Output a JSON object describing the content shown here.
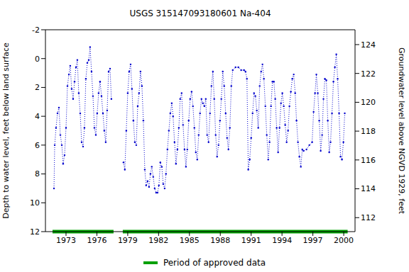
{
  "chart_data": {
    "type": "line",
    "title": "USGS 315147093180601 Na-404",
    "y_label": "Depth to water level, feet below land surface",
    "y2_label": "Groundwater level above NGVD 1929, feet",
    "color": "#0000cc",
    "marker": "circle",
    "line_style": "dotted",
    "xlim": [
      1971,
      2001.1
    ],
    "xticks": [
      1973,
      1976,
      1979,
      1982,
      1985,
      1988,
      1991,
      1994,
      1997,
      2000
    ],
    "ylim": [
      12,
      -2
    ],
    "yticks": [
      -2,
      0,
      2,
      4,
      6,
      8,
      10,
      12
    ],
    "y2lim": [
      111.03,
      125.03
    ],
    "y2ticks": [
      112,
      114,
      116,
      118,
      120,
      122,
      124
    ],
    "grid": false,
    "legend": "bottom",
    "x": [
      1971.83,
      1971.9,
      1972.03,
      1972.17,
      1972.31,
      1972.45,
      1972.59,
      1972.72,
      1972.86,
      1973.0,
      1973.14,
      1973.28,
      1973.41,
      1973.55,
      1973.69,
      1973.83,
      1973.97,
      1974.1,
      1974.24,
      1974.38,
      1974.52,
      1974.66,
      1974.79,
      1974.93,
      1975.07,
      1975.21,
      1975.34,
      1975.48,
      1975.62,
      1975.76,
      1975.9,
      1976.03,
      1976.17,
      1976.31,
      1976.45,
      1976.59,
      1976.72,
      1976.86,
      1977.0,
      1977.14,
      1977.28,
      1977.41,
      1978.0,
      1978.59,
      1978.72,
      1978.86,
      1979.0,
      1979.14,
      1979.28,
      1979.41,
      1979.55,
      1979.69,
      1979.83,
      1979.97,
      1980.1,
      1980.24,
      1980.38,
      1980.52,
      1980.66,
      1980.79,
      1980.93,
      1981.07,
      1981.21,
      1981.34,
      1981.48,
      1981.62,
      1981.76,
      1981.9,
      1982.03,
      1982.17,
      1982.31,
      1982.45,
      1982.59,
      1982.72,
      1982.86,
      1983.0,
      1983.14,
      1983.28,
      1983.41,
      1983.55,
      1983.69,
      1983.83,
      1983.97,
      1984.1,
      1984.24,
      1984.38,
      1984.52,
      1984.66,
      1984.79,
      1984.93,
      1985.07,
      1985.21,
      1985.34,
      1985.48,
      1985.62,
      1985.76,
      1985.9,
      1986.03,
      1986.17,
      1986.31,
      1986.45,
      1986.59,
      1986.72,
      1986.86,
      1987.0,
      1987.14,
      1987.28,
      1987.41,
      1987.55,
      1987.69,
      1987.83,
      1987.97,
      1988.1,
      1988.24,
      1988.38,
      1988.52,
      1988.66,
      1988.79,
      1988.93,
      1989.07,
      1989.21,
      1989.48,
      1989.76,
      1990.03,
      1990.31,
      1990.45,
      1990.59,
      1990.72,
      1990.86,
      1991.0,
      1991.14,
      1991.28,
      1991.41,
      1991.55,
      1991.69,
      1991.83,
      1991.97,
      1992.1,
      1992.24,
      1992.38,
      1992.52,
      1992.66,
      1992.79,
      1992.93,
      1993.07,
      1993.21,
      1993.34,
      1993.48,
      1993.62,
      1993.76,
      1993.9,
      1994.03,
      1994.17,
      1994.31,
      1994.45,
      1994.59,
      1994.72,
      1994.86,
      1995.0,
      1995.14,
      1995.28,
      1995.41,
      1995.55,
      1995.69,
      1995.83,
      1995.97,
      1996.1,
      1996.38,
      1996.66,
      1996.93,
      1997.07,
      1997.21,
      1997.34,
      1997.48,
      1997.62,
      1997.76,
      1997.9,
      1998.03,
      1998.17,
      1998.31,
      1998.45,
      1998.59,
      1998.72,
      1998.86,
      1999.0,
      1999.14,
      1999.28,
      1999.41,
      1999.55,
      1999.69,
      1999.83,
      1999.97,
      2000.1
    ],
    "values": [
      9.0,
      6.0,
      4.8,
      3.8,
      3.4,
      5.3,
      6.0,
      7.3,
      6.7,
      4.8,
      1.9,
      1.1,
      0.5,
      2.1,
      2.8,
      1.6,
      0.6,
      0.1,
      2.4,
      3.8,
      5.8,
      6.1,
      4.8,
      1.4,
      0.3,
      0.1,
      -0.8,
      0.9,
      2.6,
      4.8,
      5.3,
      3.8,
      2.4,
      1.6,
      2.6,
      3.8,
      5.0,
      5.8,
      3.6,
      0.9,
      0.7,
      2.8,
      null,
      7.2,
      7.7,
      5.0,
      2.4,
      0.9,
      0.4,
      2.1,
      4.3,
      5.8,
      6.0,
      3.3,
      2.4,
      0.9,
      1.9,
      4.3,
      7.7,
      8.8,
      8.5,
      8.9,
      8.0,
      7.5,
      8.2,
      9.0,
      9.3,
      9.3,
      8.8,
      7.2,
      7.5,
      8.7,
      9.0,
      8.0,
      6.3,
      5.0,
      3.8,
      3.1,
      4.0,
      5.8,
      7.3,
      6.3,
      4.8,
      2.8,
      2.4,
      4.6,
      6.3,
      7.5,
      6.3,
      4.3,
      2.8,
      2.3,
      3.3,
      4.8,
      6.5,
      7.0,
      5.3,
      3.8,
      2.8,
      3.1,
      3.3,
      2.8,
      5.3,
      5.8,
      3.8,
      1.9,
      0.9,
      2.8,
      5.3,
      6.8,
      6.0,
      4.3,
      2.8,
      0.9,
      1.9,
      3.8,
      5.5,
      6.3,
      4.8,
      1.9,
      0.8,
      0.6,
      0.6,
      0.8,
      0.8,
      0.9,
      1.4,
      7.7,
      7.0,
      5.5,
      3.8,
      2.4,
      2.6,
      3.6,
      4.8,
      1.9,
      0.9,
      0.4,
      1.4,
      3.3,
      5.3,
      7.0,
      5.8,
      3.3,
      1.6,
      1.6,
      2.8,
      4.8,
      6.5,
      4.8,
      3.1,
      2.4,
      3.3,
      4.6,
      5.8,
      5.0,
      3.3,
      2.3,
      1.4,
      1.1,
      2.4,
      4.3,
      5.8,
      6.8,
      7.5,
      6.3,
      6.4,
      6.3,
      6.0,
      5.8,
      3.7,
      2.4,
      1.1,
      2.4,
      4.3,
      6.4,
      5.3,
      2.8,
      1.4,
      1.5,
      4.3,
      6.5,
      5.8,
      3.8,
      1.6,
      0.6,
      -0.3,
      1.4,
      3.8,
      6.8,
      7.0,
      5.8,
      3.8
    ],
    "approved": {
      "name": "Period of approved data",
      "color": "#00a000",
      "ranges": [
        [
          1971.69,
          1977.62
        ],
        [
          1978.52,
          2000.38
        ]
      ]
    }
  }
}
